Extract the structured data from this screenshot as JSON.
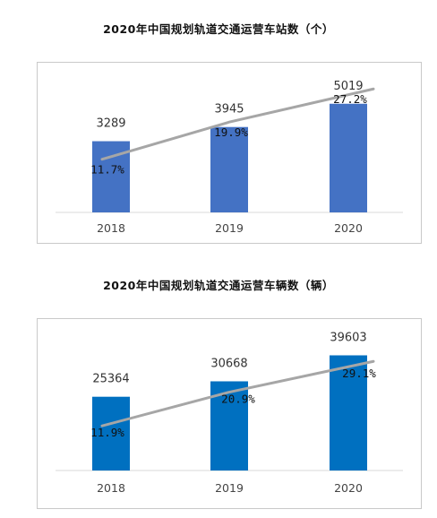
{
  "chart_data": [
    {
      "type": "bar",
      "title": "2020年中国规划轨道交通运营车站数（个）",
      "categories": [
        "2018",
        "2019",
        "2020"
      ],
      "values": [
        3289,
        3945,
        5019
      ],
      "ylim": [
        0,
        6500
      ],
      "growth_line": {
        "values": [
          11.7,
          19.9,
          27.2
        ],
        "labels": [
          "11.7%",
          "19.9%",
          "27.2%"
        ],
        "ylim": [
          0,
          31
        ]
      },
      "colors": {
        "bar": "#4472C4",
        "line": "#A6A6A6"
      },
      "grid": false,
      "legend": "none"
    },
    {
      "type": "bar",
      "title": "2020年中国规划轨道交通运营车辆数（辆）",
      "categories": [
        "2018",
        "2019",
        "2020"
      ],
      "values": [
        25364,
        30668,
        39603
      ],
      "ylim": [
        0,
        49000
      ],
      "growth_line": {
        "values": [
          11.9,
          20.9,
          29.1
        ],
        "labels": [
          "11.9%",
          "20.9%",
          "29.1%"
        ],
        "ylim": [
          0,
          38
        ]
      },
      "colors": {
        "bar": "#0070C0",
        "line": "#A6A6A6"
      },
      "grid": false,
      "legend": "none"
    }
  ]
}
